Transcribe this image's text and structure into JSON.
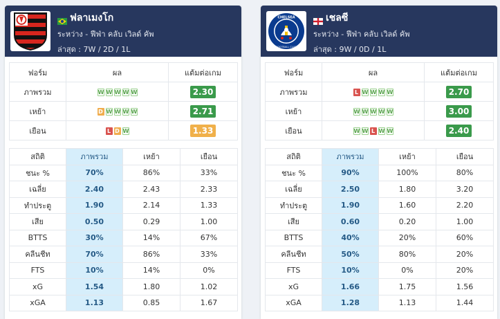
{
  "cards": [
    {
      "team_name": "ฟลาเมงโก",
      "flag": "brazil-flag",
      "logo": "flamengo-crest",
      "competition": "ระหว่าง - ฟีฟ่า คลับ เวิลด์ คัพ",
      "last": "ล่าสุด : 7W / 2D / 1L",
      "form_headers": [
        "ฟอร์ม",
        "ผล",
        "แต้มต่อเกม"
      ],
      "form_rows": [
        {
          "label": "ภาพรวม",
          "results": [
            "W",
            "W",
            "W",
            "W",
            "W"
          ],
          "points": "2.30",
          "points_color": "#3a9a4b"
        },
        {
          "label": "เหย้า",
          "results": [
            "D",
            "W",
            "W",
            "W",
            "W"
          ],
          "points": "2.71",
          "points_color": "#3a9a4b"
        },
        {
          "label": "เยือน",
          "results": [
            "L",
            "D",
            "W"
          ],
          "points": "1.33",
          "points_color": "#f0b04a"
        }
      ],
      "stats_headers": [
        "สถิติ",
        "ภาพรวม",
        "เหย้า",
        "เยือน"
      ],
      "stats_rows": [
        {
          "label": "ชนะ %",
          "overall": "70%",
          "home": "86%",
          "away": "33%"
        },
        {
          "label": "เฉลี่ย",
          "overall": "2.40",
          "home": "2.43",
          "away": "2.33"
        },
        {
          "label": "ทำประตู",
          "overall": "1.90",
          "home": "2.14",
          "away": "1.33"
        },
        {
          "label": "เสีย",
          "overall": "0.50",
          "home": "0.29",
          "away": "1.00"
        },
        {
          "label": "BTTS",
          "overall": "30%",
          "home": "14%",
          "away": "67%"
        },
        {
          "label": "คลีนชีท",
          "overall": "70%",
          "home": "86%",
          "away": "33%"
        },
        {
          "label": "FTS",
          "overall": "10%",
          "home": "14%",
          "away": "0%"
        },
        {
          "label": "xG",
          "overall": "1.54",
          "home": "1.80",
          "away": "1.02"
        },
        {
          "label": "xGA",
          "overall": "1.13",
          "home": "0.85",
          "away": "1.67"
        }
      ]
    },
    {
      "team_name": "เชลซี",
      "flag": "england-flag",
      "logo": "chelsea-crest",
      "logo_text": "CHELSEA FOOTBALL CLUB",
      "competition": "ระหว่าง - ฟีฟ่า คลับ เวิลด์ คัพ",
      "last": "ล่าสุด : 9W / 0D / 1L",
      "form_headers": [
        "ฟอร์ม",
        "ผล",
        "แต้มต่อเกม"
      ],
      "form_rows": [
        {
          "label": "ภาพรวม",
          "results": [
            "L",
            "W",
            "W",
            "W",
            "W"
          ],
          "points": "2.70",
          "points_color": "#3a9a4b"
        },
        {
          "label": "เหย้า",
          "results": [
            "W",
            "W",
            "W",
            "W",
            "W"
          ],
          "points": "3.00",
          "points_color": "#3a9a4b"
        },
        {
          "label": "เยือน",
          "results": [
            "W",
            "W",
            "L",
            "W",
            "W"
          ],
          "points": "2.40",
          "points_color": "#3a9a4b"
        }
      ],
      "stats_headers": [
        "สถิติ",
        "ภาพรวม",
        "เหย้า",
        "เยือน"
      ],
      "stats_rows": [
        {
          "label": "ชนะ %",
          "overall": "90%",
          "home": "100%",
          "away": "80%"
        },
        {
          "label": "เฉลี่ย",
          "overall": "2.50",
          "home": "1.80",
          "away": "3.20"
        },
        {
          "label": "ทำประตู",
          "overall": "1.90",
          "home": "1.60",
          "away": "2.20"
        },
        {
          "label": "เสีย",
          "overall": "0.60",
          "home": "0.20",
          "away": "1.00"
        },
        {
          "label": "BTTS",
          "overall": "40%",
          "home": "20%",
          "away": "60%"
        },
        {
          "label": "คลีนชีท",
          "overall": "50%",
          "home": "80%",
          "away": "20%"
        },
        {
          "label": "FTS",
          "overall": "10%",
          "home": "0%",
          "away": "20%"
        },
        {
          "label": "xG",
          "overall": "1.66",
          "home": "1.75",
          "away": "1.56"
        },
        {
          "label": "xGA",
          "overall": "1.28",
          "home": "1.13",
          "away": "1.44"
        }
      ]
    }
  ],
  "colors": {
    "header_bg": "#27375e",
    "win": "#5aa44f",
    "draw": "#f0ad4e",
    "loss": "#d9534f",
    "highlight_col": "#d6eefb"
  }
}
